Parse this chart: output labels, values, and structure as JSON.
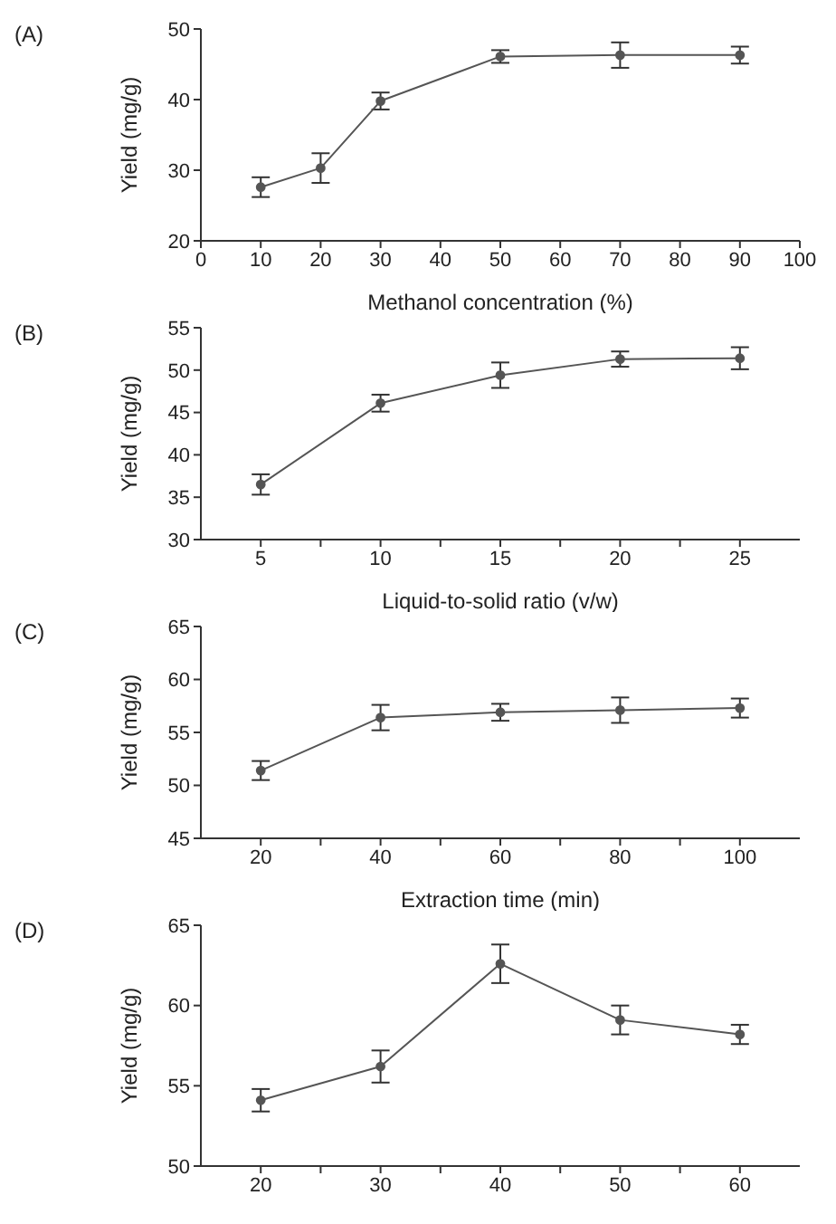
{
  "chart_data": [
    {
      "type": "line",
      "title": "(A)",
      "xlabel": "Methanol concentration (%)",
      "ylabel": "Yield (mg/g)",
      "x": [
        10,
        20,
        30,
        50,
        70,
        90
      ],
      "series": [
        {
          "color": "#555555",
          "values": [
            27.6,
            30.3,
            39.8,
            46.1,
            46.3,
            46.3
          ],
          "errors": [
            1.4,
            2.1,
            1.2,
            0.9,
            1.8,
            1.2
          ]
        }
      ],
      "xlim": [
        0,
        100
      ],
      "xticks": [
        0,
        10,
        20,
        30,
        40,
        50,
        60,
        70,
        80,
        90,
        100
      ],
      "ylim": [
        20,
        50
      ],
      "yticks": [
        20,
        30,
        40,
        50
      ],
      "grid": false,
      "legend": false,
      "marker": "circle",
      "line_style": "solid"
    },
    {
      "type": "line",
      "title": "(B)",
      "xlabel": "Liquid-to-solid ratio (v/w)",
      "ylabel": "Yield (mg/g)",
      "x": [
        5,
        10,
        15,
        20,
        25
      ],
      "series": [
        {
          "color": "#555555",
          "values": [
            36.5,
            46.1,
            49.4,
            51.3,
            51.4
          ],
          "errors": [
            1.2,
            1.0,
            1.5,
            0.9,
            1.3
          ]
        }
      ],
      "xlim": [
        2.5,
        27.5
      ],
      "xticks": [
        5,
        {
          "value": 7.5,
          "label": null
        },
        10,
        {
          "value": 12.5,
          "label": null
        },
        15,
        {
          "value": 17.5,
          "label": null
        },
        20,
        {
          "value": 22.5,
          "label": null
        },
        25
      ],
      "ylim": [
        30,
        55
      ],
      "yticks": [
        30,
        35,
        40,
        45,
        50,
        55
      ],
      "grid": false,
      "legend": false,
      "marker": "circle",
      "line_style": "solid"
    },
    {
      "type": "line",
      "title": "(C)",
      "xlabel": "Extraction time (min)",
      "ylabel": "Yield (mg/g)",
      "x": [
        20,
        40,
        60,
        80,
        100
      ],
      "series": [
        {
          "color": "#555555",
          "values": [
            51.4,
            56.4,
            56.9,
            57.1,
            57.3
          ],
          "errors": [
            0.9,
            1.2,
            0.8,
            1.2,
            0.9
          ]
        }
      ],
      "xlim": [
        10,
        110
      ],
      "xticks": [
        20,
        {
          "value": 30,
          "label": null
        },
        40,
        {
          "value": 50,
          "label": null
        },
        60,
        {
          "value": 70,
          "label": null
        },
        80,
        {
          "value": 90,
          "label": null
        },
        100
      ],
      "ylim": [
        45,
        65
      ],
      "yticks": [
        45,
        50,
        55,
        60,
        65
      ],
      "grid": false,
      "legend": false,
      "marker": "circle",
      "line_style": "solid"
    },
    {
      "type": "line",
      "title": "(D)",
      "ylabel": "Yield (mg/g)",
      "x": [
        20,
        30,
        40,
        50,
        60
      ],
      "series": [
        {
          "color": "#555555",
          "values": [
            54.1,
            56.2,
            62.6,
            59.1,
            58.2
          ],
          "errors": [
            0.7,
            1.0,
            1.2,
            0.9,
            0.6
          ]
        }
      ],
      "xlim": [
        15,
        65
      ],
      "xticks": [
        20,
        {
          "value": 25,
          "label": null
        },
        30,
        {
          "value": 35,
          "label": null
        },
        40,
        {
          "value": 45,
          "label": null
        },
        50,
        {
          "value": 55,
          "label": null
        },
        60
      ],
      "ylim": [
        50,
        65
      ],
      "yticks": [
        50,
        55,
        60,
        65
      ],
      "grid": false,
      "legend": false,
      "marker": "circle",
      "line_style": "solid"
    }
  ]
}
